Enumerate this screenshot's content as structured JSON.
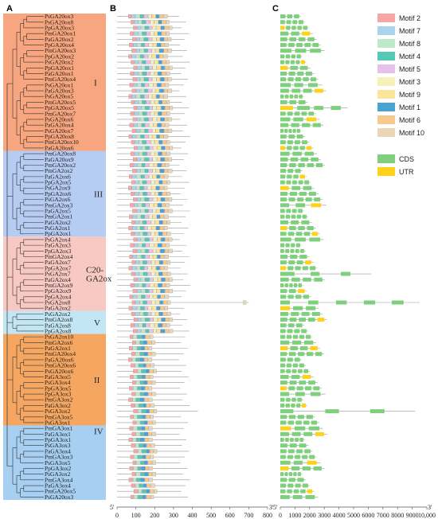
{
  "panels": {
    "a": "A",
    "b": "B",
    "c": "C"
  },
  "groups": [
    {
      "label": "I",
      "start": 0,
      "end": 23,
      "color": "#f7a67f"
    },
    {
      "label": "III",
      "start": 24,
      "end": 38,
      "color": "#b6ccf3"
    },
    {
      "label": "C20-\nGA2ox",
      "start": 39,
      "end": 51,
      "color": "#f8c8c2"
    },
    {
      "label": "V",
      "start": 52,
      "end": 55,
      "color": "#c3e6f5"
    },
    {
      "label": "II",
      "start": 56,
      "end": 71,
      "color": "#f5a761"
    },
    {
      "label": "IV",
      "start": 72,
      "end": 73,
      "color": "#a7cff2"
    }
  ],
  "genes": [
    "PsGA20ox3",
    "PsGA20ox8",
    "PpGA20ox3",
    "PmGA20ox1",
    "PaGA20ox2",
    "PpGA20ox4",
    "PmGA20ox3",
    "PpGA20ox2",
    "PsGA20ox2",
    "PpGA20ox1",
    "PaGA20ox1",
    "PmGA20ox4",
    "PsGA20ox1",
    "PaGA20ox3",
    "PsGA20ox5",
    "PmGA20ox5",
    "PpGA20ox5",
    "PmGA20ox7",
    "PsGA20ox6",
    "PaGA20ox4",
    "PsGA20ox7",
    "PpGA20ox8",
    "PmGA20ox10",
    "PaGA20ox6",
    "PmGA20ox8",
    "PaGA20ox9",
    "PmGA20ox2",
    "PmGA2ox2",
    "PaGA2ox6",
    "PpGA2ox5",
    "PsGA2ox9",
    "PpGA2ox6",
    "PsGA2ox6",
    "PmGA2ox3",
    "PaGA2ox5",
    "PmGA2ox1",
    "PaGA2ox2",
    "PsGA2ox1",
    "PpGA2ox1",
    "PsGA2ox4",
    "PaGA2ox3",
    "PpGA2ox3",
    "PmGA2ox4",
    "PaGA2ox7",
    "PpGA2ox7",
    "PsGA2ox7",
    "PaGA2ox4",
    "PmGA2ox9",
    "PpGA2ox9",
    "PpGA2ox4",
    "PsGA2ox8",
    "PaGA2ox2",
    "PsGA2ox2",
    "PmGA2ox8",
    "PaGA2ox8",
    "PpGA2ox8",
    "PsGA2ox10",
    "PmGA2ox6",
    "PaGA2ox1",
    "PmGA20ox4",
    "PaGA20ox6",
    "PmGA20ox6",
    "PsGA20ox6",
    "PaGA3ox5",
    "PsGA3ox4",
    "PpGA3ox5",
    "PpGA3ox3",
    "PmGA3ox2",
    "PaGA3ox2",
    "PsGA3ox2",
    "PmGA3ox5",
    "PsGA3ox1",
    "PmGA3ox1",
    "PaGA3ox1"
  ],
  "genes_tail": [
    "PpGA3ox1",
    "PsGA3ox3",
    "PaGA3ox4",
    "PmGA3ox3",
    "PsGA3ox5",
    "PpGA3ox2",
    "PsGA3ox2",
    "PmGA3ox4",
    "PaGA3ox4",
    "PmGA20ox5",
    "PsGA20ox3"
  ],
  "motif_legend": [
    {
      "name": "Motif 2",
      "color": "#f6a6a6"
    },
    {
      "name": "Motif 7",
      "color": "#a9d4ea"
    },
    {
      "name": "Motif 8",
      "color": "#bfe8c9"
    },
    {
      "name": "Motif 4",
      "color": "#55c9b5"
    },
    {
      "name": "Motif 5",
      "color": "#e6c2e8"
    },
    {
      "name": "Motif 3",
      "color": "#f7f0b8"
    },
    {
      "name": "Motif 9",
      "color": "#fbe59a"
    },
    {
      "name": "Motif 1",
      "color": "#4ba3d1"
    },
    {
      "name": "Motif 6",
      "color": "#f8c98c"
    },
    {
      "name": "Motif 10",
      "color": "#e8d6b8"
    }
  ],
  "structure_legend": [
    {
      "name": "CDS",
      "color": "#7fd07d"
    },
    {
      "name": "UTR",
      "color": "#ffd21a"
    }
  ],
  "axis_b": {
    "ticks": [
      "0",
      "100",
      "200",
      "300",
      "400",
      "500",
      "600",
      "700",
      "800"
    ],
    "left_end": "5'",
    "right_end": "3'"
  },
  "axis_c": {
    "ticks": [
      "0",
      "1000",
      "2000",
      "3000",
      "4000",
      "5000",
      "6000",
      "7000",
      "8000",
      "9000",
      "10,000"
    ],
    "left_end": "5'",
    "right_end": "3'"
  }
}
